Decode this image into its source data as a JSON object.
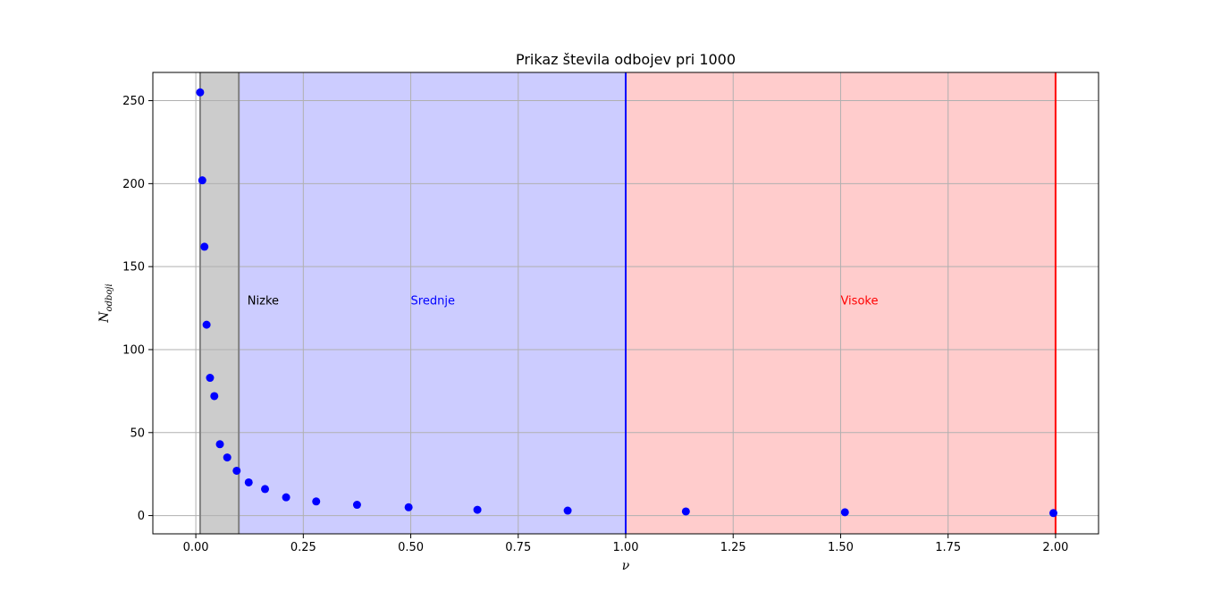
{
  "chart_data": {
    "type": "scatter",
    "title": "Prikaz števila odbojev pri 1000",
    "xlabel": "ν",
    "ylabel_main": "N",
    "ylabel_sub": "odboji",
    "xlim": [
      -0.1,
      2.1
    ],
    "ylim": [
      -11,
      267
    ],
    "x_ticks": [
      0.0,
      0.25,
      0.5,
      0.75,
      1.0,
      1.25,
      1.5,
      1.75,
      2.0
    ],
    "x_tick_labels": [
      "0.00",
      "0.25",
      "0.50",
      "0.75",
      "1.00",
      "1.25",
      "1.50",
      "1.75",
      "2.00"
    ],
    "y_ticks": [
      0,
      50,
      100,
      150,
      200,
      250
    ],
    "y_tick_labels": [
      "0",
      "50",
      "100",
      "150",
      "200",
      "250"
    ],
    "grid": true,
    "series": [
      {
        "color": "#0000ff",
        "x": [
          0.01,
          0.015,
          0.02,
          0.025,
          0.033,
          0.043,
          0.056,
          0.073,
          0.095,
          0.123,
          0.161,
          0.21,
          0.28,
          0.375,
          0.495,
          0.655,
          0.865,
          1.14,
          1.51,
          1.995
        ],
        "y": [
          255,
          202,
          162,
          115,
          83,
          72,
          43,
          35,
          27,
          20,
          16,
          11,
          8.5,
          6.5,
          5,
          3.5,
          3,
          2.5,
          2,
          1.5
        ]
      }
    ],
    "regions": [
      {
        "label": "Nizke",
        "x_range": [
          0.01,
          0.1
        ],
        "fill": "#cccccc",
        "edge": "#808080",
        "label_color": "#000000",
        "label_x": 0.12,
        "label_y": 130
      },
      {
        "label": "Srednje",
        "x_range": [
          0.1,
          1.0
        ],
        "fill": "#ccccff",
        "edge": "#0000ff",
        "label_color": "#0000ff",
        "label_x": 0.5,
        "label_y": 130
      },
      {
        "label": "Visoke",
        "x_range": [
          1.0,
          2.0
        ],
        "fill": "#ffcccc",
        "edge": "#ff0000",
        "label_color": "#ff0000",
        "label_x": 1.5,
        "label_y": 130
      }
    ]
  }
}
